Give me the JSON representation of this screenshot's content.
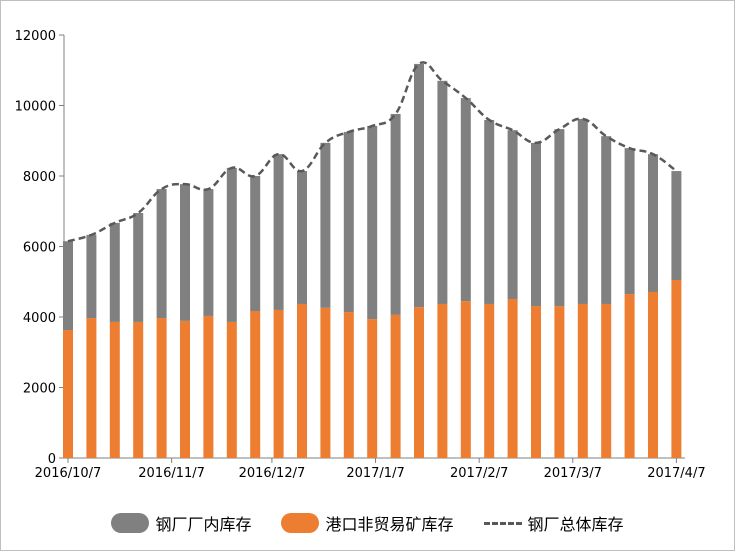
{
  "chart_data": {
    "type": "bar",
    "stacked": true,
    "x": [
      "2016-10-07",
      "2016-10-14",
      "2016-10-21",
      "2016-10-28",
      "2016-11-04",
      "2016-11-11",
      "2016-11-18",
      "2016-11-25",
      "2016-12-02",
      "2016-12-09",
      "2016-12-16",
      "2016-12-23",
      "2016-12-30",
      "2017-01-06",
      "2017-01-13",
      "2017-01-20",
      "2017-01-27",
      "2017-02-03",
      "2017-02-10",
      "2017-02-17",
      "2017-02-24",
      "2017-03-03",
      "2017-03-10",
      "2017-03-17",
      "2017-03-24",
      "2017-03-31",
      "2017-04-07"
    ],
    "xticks": [
      "2016/10/7",
      "2016/11/7",
      "2016/12/7",
      "2017/1/7",
      "2017/2/7",
      "2017/3/7",
      "2017/4/7"
    ],
    "xtick_dates": [
      "2016-10-07",
      "2016-11-07",
      "2016-12-07",
      "2017-01-07",
      "2017-02-07",
      "2017-03-07",
      "2017-04-07"
    ],
    "ylim": [
      0,
      12000
    ],
    "yticks": [
      0,
      2000,
      4000,
      6000,
      8000,
      10000,
      12000
    ],
    "grid": false,
    "legend_position": "bottom",
    "series": [
      {
        "name": "钢厂厂内库存",
        "type": "bar",
        "color": "#808080",
        "values": [
          2520,
          2360,
          2810,
          3090,
          3660,
          3880,
          3600,
          4370,
          3830,
          4420,
          3770,
          4680,
          5110,
          5480,
          5700,
          6900,
          6330,
          5760,
          5220,
          4790,
          4630,
          5020,
          5250,
          4760,
          4140,
          3910,
          3090
        ]
      },
      {
        "name": "港口非贸易矿库存",
        "type": "bar",
        "color": "#ed7d31",
        "values": [
          3630,
          3970,
          3860,
          3860,
          3970,
          3890,
          4030,
          3860,
          4170,
          4200,
          4370,
          4260,
          4140,
          3940,
          4060,
          4280,
          4370,
          4450,
          4370,
          4510,
          4310,
          4310,
          4370,
          4370,
          4650,
          4710,
          5050
        ]
      },
      {
        "name": "钢厂总体库存",
        "type": "line",
        "style": "dashed",
        "color": "#595959",
        "values": [
          6150,
          6330,
          6670,
          6950,
          7630,
          7770,
          7630,
          8230,
          8000,
          8620,
          8140,
          8940,
          9250,
          9420,
          9760,
          11180,
          10700,
          10210,
          9590,
          9300,
          8940,
          9330,
          9620,
          9130,
          8790,
          8620,
          8140
        ]
      }
    ]
  }
}
